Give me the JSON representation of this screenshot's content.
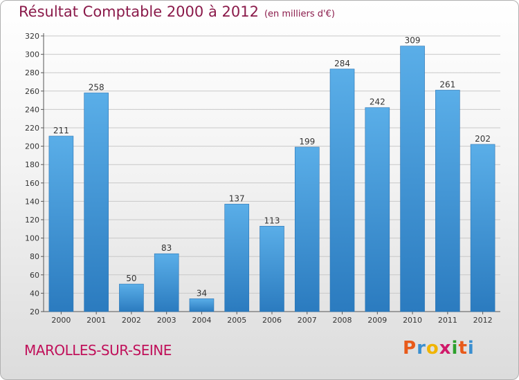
{
  "chart_data": {
    "type": "bar",
    "title": "Résultat Comptable 2000 à 2012",
    "unit": "(en milliers d'€)",
    "categories": [
      "2000",
      "2001",
      "2002",
      "2003",
      "2004",
      "2005",
      "2006",
      "2007",
      "2008",
      "2009",
      "2010",
      "2011",
      "2012"
    ],
    "values": [
      211,
      258,
      50,
      83,
      34,
      137,
      113,
      199,
      284,
      242,
      309,
      261,
      202
    ],
    "ylim": [
      20,
      320
    ],
    "yticks": [
      20,
      40,
      60,
      80,
      100,
      120,
      140,
      160,
      180,
      200,
      220,
      240,
      260,
      280,
      300,
      320
    ],
    "xlabel": "",
    "ylabel": "",
    "grid": true,
    "bar_color_top": "#5aaee8",
    "bar_color_bottom": "#2b7bbf"
  },
  "commune": "MAROLLES-SUR-SEINE",
  "logo": {
    "letters": [
      "P",
      "r",
      "o",
      "x",
      "i",
      "t",
      "i"
    ],
    "colors": [
      "#e85a1a",
      "#3a8fd0",
      "#f0b400",
      "#d01a6a",
      "#2ca02c",
      "#e85a1a",
      "#3a8fd0"
    ]
  }
}
